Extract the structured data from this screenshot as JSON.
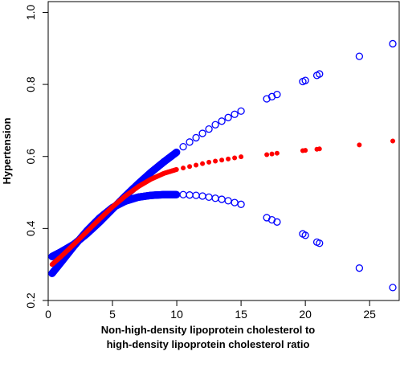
{
  "chart_data": {
    "type": "scatter",
    "title": "",
    "xlabel_lines": [
      "Non-high-density lipoprotein cholesterol to",
      "high-density lipoprotein cholesterol ratio"
    ],
    "ylabel": "Hypertension",
    "xlim": [
      0,
      27.3
    ],
    "ylim": [
      0.2,
      1.03
    ],
    "x_ticks": [
      0,
      5,
      10,
      15,
      20,
      25
    ],
    "x_tick_labels": [
      "0",
      "5",
      "10",
      "15",
      "20",
      "25"
    ],
    "y_ticks": [
      0.2,
      0.4,
      0.6,
      0.8,
      1.0
    ],
    "y_tick_labels": [
      "0.2",
      "0.4",
      "0.6",
      "0.8",
      "1.0"
    ],
    "grid": false,
    "colors": {
      "estimate": "#ff0000",
      "ci": "#0000ff"
    },
    "dense_region": {
      "x_start": 0.3,
      "x_end": 10.0,
      "step": 0.04
    },
    "series": [
      {
        "role": "estimate",
        "marker": "filled-circle",
        "color": "#ff0000",
        "x": [
          0.3,
          1,
          2,
          3,
          4,
          5,
          6,
          7,
          8,
          9,
          10,
          10.5,
          11,
          11.5,
          12,
          12.5,
          13,
          13.5,
          14,
          14.5,
          15,
          17,
          17.4,
          17.8,
          19.8,
          20,
          20.9,
          21.1,
          24.2,
          26.8
        ],
        "y": [
          0.3,
          0.322,
          0.356,
          0.391,
          0.426,
          0.46,
          0.49,
          0.516,
          0.537,
          0.553,
          0.564,
          0.568,
          0.572,
          0.576,
          0.58,
          0.584,
          0.587,
          0.59,
          0.593,
          0.596,
          0.599,
          0.605,
          0.607,
          0.609,
          0.616,
          0.617,
          0.62,
          0.621,
          0.632,
          0.643
        ]
      },
      {
        "role": "ci-upper",
        "marker": "open-circle",
        "color": "#0000ff",
        "x": [
          0.3,
          1,
          2,
          3,
          4,
          5,
          6,
          7,
          8,
          9,
          10,
          10.5,
          11,
          11.5,
          12,
          12.5,
          13,
          13.5,
          14,
          14.5,
          15,
          17,
          17.4,
          17.8,
          19.8,
          20,
          20.9,
          21.1,
          24.2,
          26.8
        ],
        "y": [
          0.322,
          0.335,
          0.356,
          0.385,
          0.418,
          0.454,
          0.49,
          0.524,
          0.556,
          0.585,
          0.612,
          0.627,
          0.64,
          0.652,
          0.664,
          0.676,
          0.688,
          0.698,
          0.708,
          0.717,
          0.726,
          0.76,
          0.766,
          0.772,
          0.808,
          0.811,
          0.825,
          0.829,
          0.878,
          0.913
        ]
      },
      {
        "role": "ci-lower",
        "marker": "open-circle",
        "color": "#0000ff",
        "x": [
          0.3,
          1,
          2,
          3,
          4,
          5,
          6,
          7,
          8,
          9,
          10,
          10.5,
          11,
          11.5,
          12,
          12.5,
          13,
          13.5,
          14,
          14.5,
          15,
          17,
          17.4,
          17.8,
          19.8,
          20,
          20.9,
          21.1,
          24.2,
          26.8
        ],
        "y": [
          0.275,
          0.306,
          0.351,
          0.393,
          0.429,
          0.458,
          0.476,
          0.487,
          0.492,
          0.494,
          0.494,
          0.494,
          0.493,
          0.492,
          0.49,
          0.487,
          0.484,
          0.481,
          0.477,
          0.472,
          0.467,
          0.43,
          0.424,
          0.418,
          0.385,
          0.381,
          0.362,
          0.359,
          0.29,
          0.236
        ]
      }
    ]
  }
}
